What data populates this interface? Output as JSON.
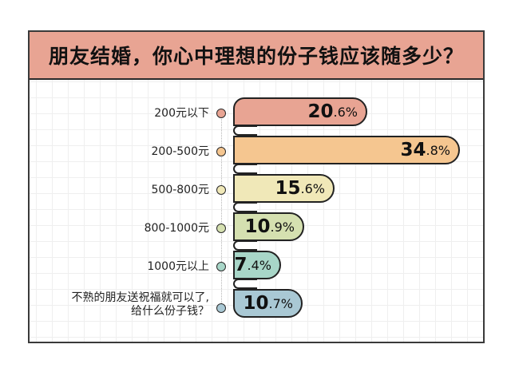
{
  "title": "朋友结婚，你心中理想的份子钱应该随多少？",
  "colors": {
    "title_bg": "#E8A493",
    "border": "#222222",
    "grid": "#efefef"
  },
  "rows": [
    {
      "label": "200元以下",
      "label_line2": "",
      "value_int": "20",
      "value_dec": ".6%",
      "value": 20.6,
      "color": "#E8A493"
    },
    {
      "label": "200-500元",
      "label_line2": "",
      "value_int": "34",
      "value_dec": ".8%",
      "value": 34.8,
      "color": "#F5C690"
    },
    {
      "label": "500-800元",
      "label_line2": "",
      "value_int": "15",
      "value_dec": ".6%",
      "value": 15.6,
      "color": "#F0E8B8"
    },
    {
      "label": "800-1000元",
      "label_line2": "",
      "value_int": "10",
      "value_dec": ".9%",
      "value": 10.9,
      "color": "#D5E0B0"
    },
    {
      "label": "1000元以上",
      "label_line2": "",
      "value_int": "7",
      "value_dec": ".4%",
      "value": 7.4,
      "color": "#A8D6C8"
    },
    {
      "label": "不熟的朋友送祝福就可以了,",
      "label_line2": "给什么份子钱？",
      "value_int": "10",
      "value_dec": ".7%",
      "value": 10.7,
      "color": "#A9C8D4"
    }
  ],
  "chart_data": {
    "type": "bar",
    "orientation": "horizontal",
    "title": "朋友结婚，你心中理想的份子钱应该随多少？",
    "categories": [
      "200元以下",
      "200-500元",
      "500-800元",
      "800-1000元",
      "1000元以上",
      "不熟的朋友送祝福就可以了,给什么份子钱？"
    ],
    "values": [
      20.6,
      34.8,
      15.6,
      10.9,
      7.4,
      10.7
    ],
    "unit": "%",
    "colors": [
      "#E8A493",
      "#F5C690",
      "#F0E8B8",
      "#D5E0B0",
      "#A8D6C8",
      "#A9C8D4"
    ],
    "xlabel": "",
    "ylabel": "",
    "grid": true,
    "legend": "none",
    "data_labels": true
  }
}
